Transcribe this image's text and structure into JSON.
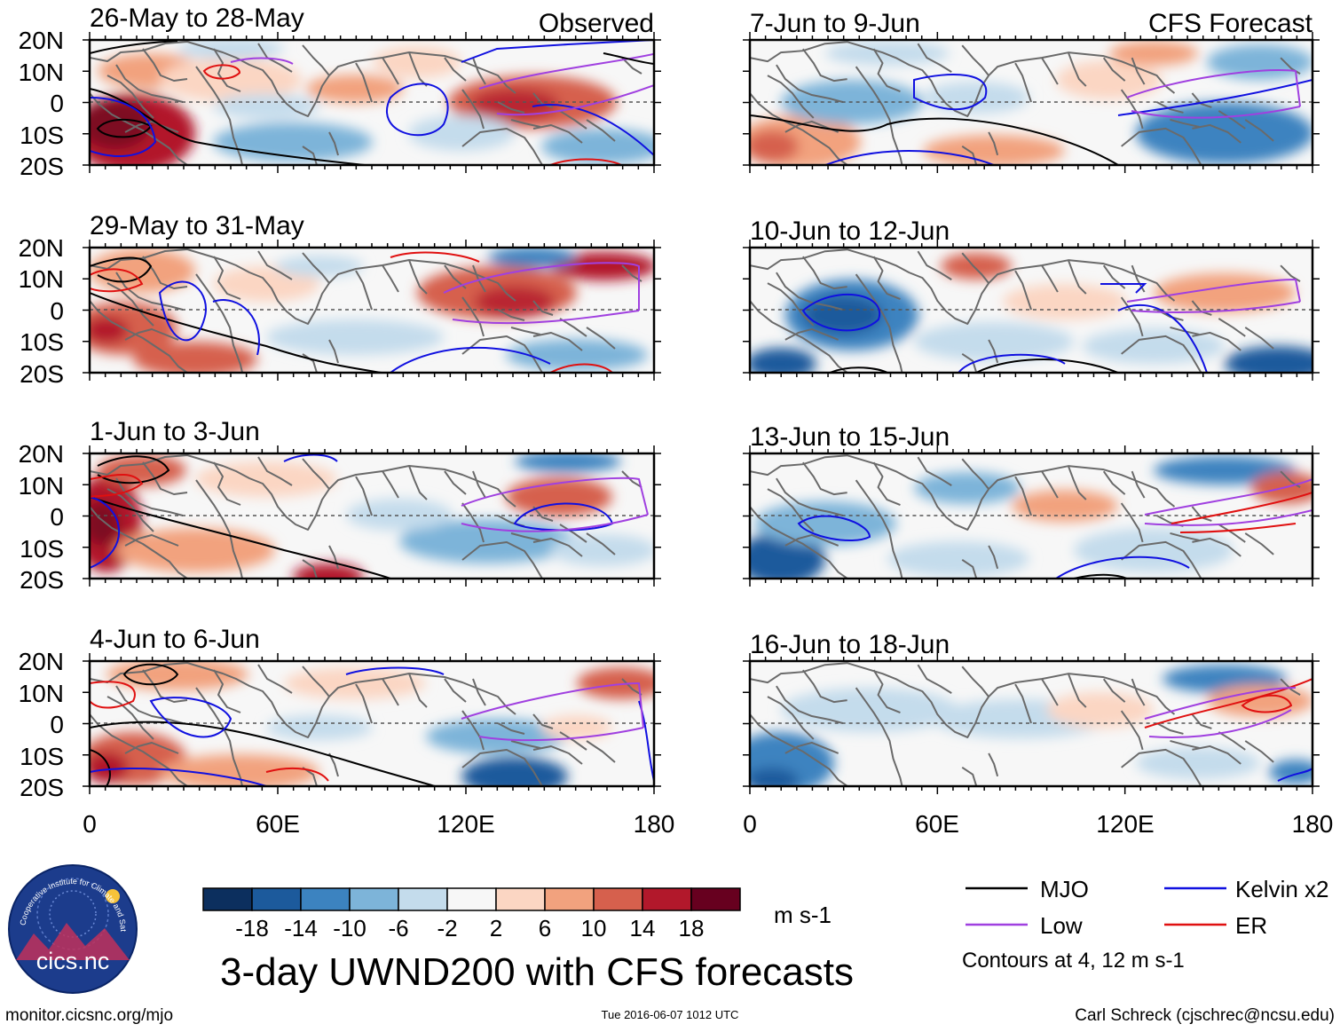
{
  "headers": {
    "observed": "Observed",
    "forecast": "CFS Forecast"
  },
  "panels": [
    {
      "title": "26-May to 28-May",
      "kind": "observed"
    },
    {
      "title": "29-May to 31-May",
      "kind": "observed"
    },
    {
      "title": "1-Jun to 3-Jun",
      "kind": "observed"
    },
    {
      "title": "4-Jun to 6-Jun",
      "kind": "observed"
    },
    {
      "title": "7-Jun to 9-Jun",
      "kind": "forecast"
    },
    {
      "title": "10-Jun to 12-Jun",
      "kind": "forecast"
    },
    {
      "title": "13-Jun to 15-Jun",
      "kind": "forecast"
    },
    {
      "title": "16-Jun to 18-Jun",
      "kind": "forecast"
    }
  ],
  "lat_labels": [
    "20N",
    "10N",
    "0",
    "10S",
    "20S"
  ],
  "lon_labels": [
    "0",
    "60E",
    "120E",
    "180"
  ],
  "colorbar": {
    "labels": [
      "-18",
      "-14",
      "-10",
      "-6",
      "-2",
      "2",
      "6",
      "10",
      "14",
      "18"
    ],
    "colors": [
      "#0c2f5e",
      "#1c5a9c",
      "#3c83c0",
      "#7db4d9",
      "#c4dcec",
      "#f7f7f7",
      "#fbd6c3",
      "#f2a27e",
      "#d6604d",
      "#b2182b",
      "#67001f"
    ],
    "units": "m s-1"
  },
  "main_title": "3-day UWND200 with CFS forecasts",
  "legend": {
    "items": [
      {
        "label": "MJO",
        "color": "#000000"
      },
      {
        "label": "Kelvin x2",
        "color": "#1010e0"
      },
      {
        "label": "Low",
        "color": "#a040e0"
      },
      {
        "label": "ER",
        "color": "#e01010"
      }
    ],
    "note": "Contours at 4, 12 m s-1"
  },
  "logo_text": "cics.nc",
  "logo_ring_text": "Cooperative Institute for Climate and Satellites",
  "footer": {
    "url": "monitor.cicsnc.org/mjo",
    "timestamp": "Tue 2016-06-07 1012 UTC",
    "author": "Carl Schreck (cjschrec@ncsu.edu)"
  }
}
